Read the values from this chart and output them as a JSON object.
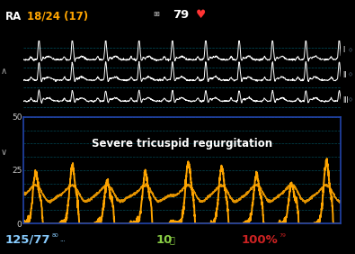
{
  "bg_color": "#000000",
  "border_color": "#2244aa",
  "title_text": "RA",
  "title_color": "#ffffff",
  "bp_text": "18/24 (17)",
  "bp_color": "#ffa500",
  "heart_rate": "79",
  "hr_color": "#ffffff",
  "grid_color": "#004455",
  "grid_color2": "#006677",
  "ecg_color": "#ffffff",
  "pressure_color": "#ffa500",
  "annotation_text": "Severe tricuspid regurgitation",
  "annotation_color": "#ffffff",
  "ylim": [
    0,
    50
  ],
  "ytick_vals": [
    0,
    25,
    50
  ],
  "bottom_left": "125/77",
  "bottom_left_color": "#88ccff",
  "bottom_mid": "10",
  "bottom_mid_color": "#88cc44",
  "bottom_right": "100%",
  "bottom_right_color": "#cc2222",
  "label_I": "I",
  "label_II": "II",
  "label_III": "III"
}
